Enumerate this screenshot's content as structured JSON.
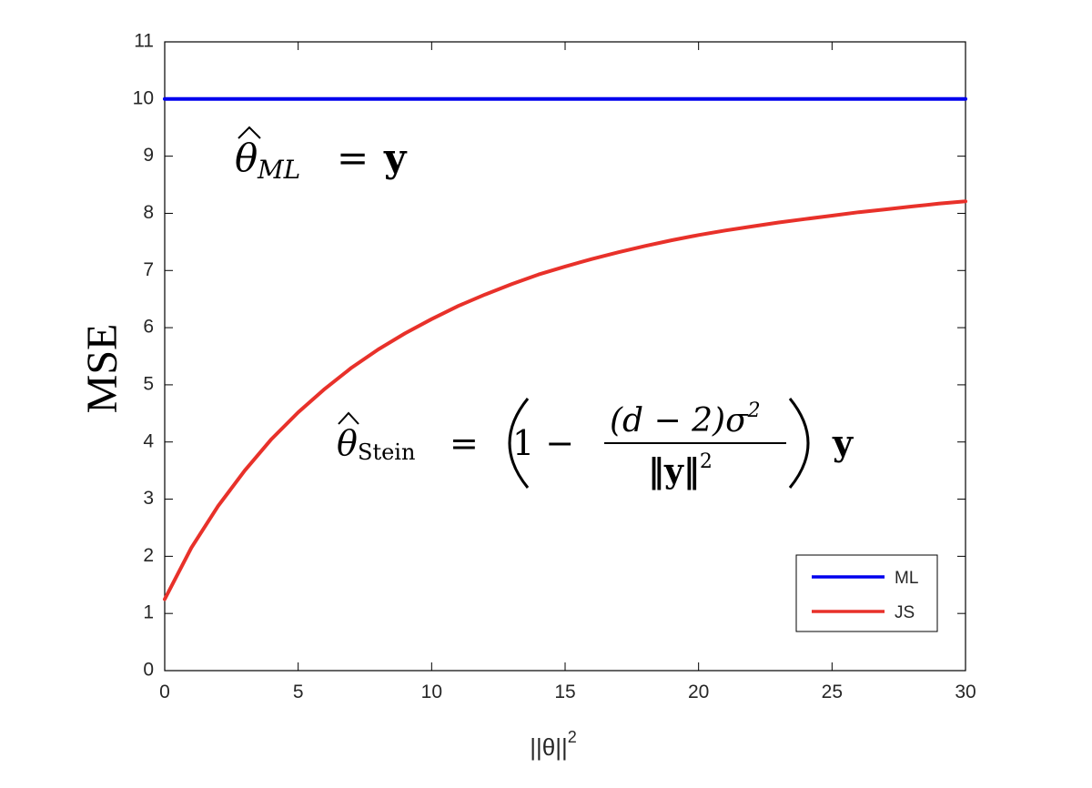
{
  "chart_data": {
    "type": "line",
    "xlabel": "||θ||",
    "xlabel_superscript": "2",
    "ylabel": "MSE",
    "xlim": [
      0,
      30
    ],
    "ylim": [
      0,
      11
    ],
    "xticks": [
      0,
      5,
      10,
      15,
      20,
      25,
      30
    ],
    "yticks": [
      0,
      1,
      2,
      3,
      4,
      5,
      6,
      7,
      8,
      9,
      10,
      11
    ],
    "grid": false,
    "legend": "bottom-right",
    "series": [
      {
        "name": "ML",
        "color": "#0000ee",
        "x": [
          0,
          30
        ],
        "y": [
          10,
          10
        ]
      },
      {
        "name": "JS",
        "color": "#e8312a",
        "x": [
          0,
          1,
          2,
          3,
          4,
          5,
          6,
          7,
          8,
          9,
          10,
          11,
          12,
          13,
          14,
          15,
          16,
          17,
          18,
          19,
          20,
          21,
          22,
          23,
          24,
          25,
          26,
          27,
          28,
          29,
          30
        ],
        "y": [
          1.25,
          2.15,
          2.88,
          3.5,
          4.05,
          4.52,
          4.93,
          5.3,
          5.62,
          5.9,
          6.15,
          6.38,
          6.58,
          6.76,
          6.93,
          7.07,
          7.2,
          7.32,
          7.43,
          7.53,
          7.62,
          7.7,
          7.77,
          7.84,
          7.9,
          7.96,
          8.02,
          8.07,
          8.12,
          8.17,
          8.21
        ]
      }
    ],
    "annotations": {
      "ml": {
        "theta": "θ",
        "sub": "ML",
        "eq": "=",
        "rhs": "y"
      },
      "stein": {
        "theta": "θ",
        "sub": "Stein",
        "eq": "=",
        "one_minus": "1 −",
        "numerator": "(d − 2)σ",
        "numerator_sup": "2",
        "denominator": "‖y‖",
        "denominator_sup": "2",
        "rhs": "y"
      }
    }
  }
}
